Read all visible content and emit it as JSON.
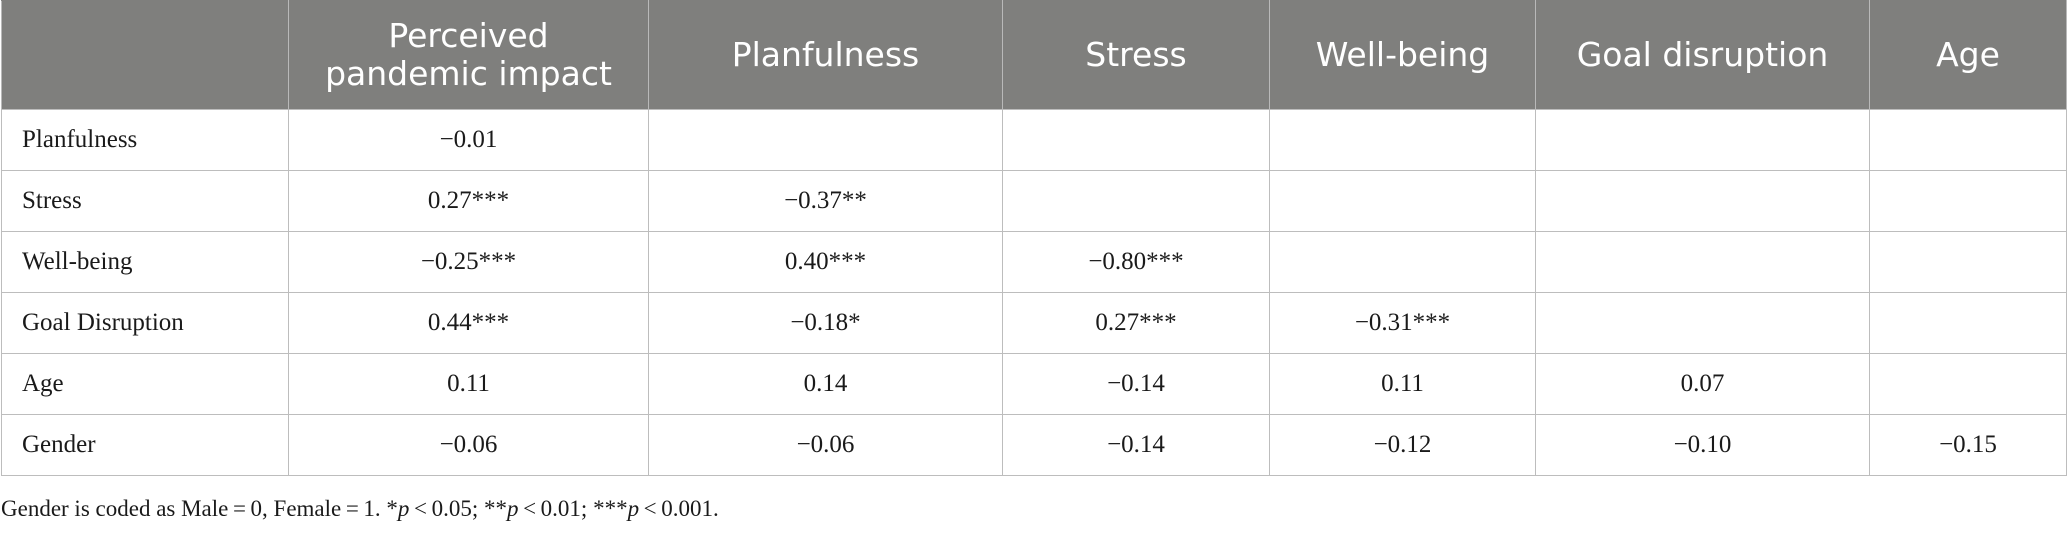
{
  "table": {
    "headers": [
      "",
      "Perceived pandemic impact",
      "Planfulness",
      "Stress",
      "Well-being",
      "Goal disruption",
      "Age"
    ],
    "rows": [
      {
        "label": "Planfulness",
        "cells": [
          "−0.01",
          "",
          "",
          "",
          "",
          ""
        ]
      },
      {
        "label": "Stress",
        "cells": [
          "0.27***",
          "−0.37**",
          "",
          "",
          "",
          ""
        ]
      },
      {
        "label": "Well-being",
        "cells": [
          "−0.25***",
          "0.40***",
          "−0.80***",
          "",
          "",
          ""
        ]
      },
      {
        "label": "Goal Disruption",
        "cells": [
          "0.44***",
          "−0.18*",
          "0.27***",
          "−0.31***",
          "",
          ""
        ]
      },
      {
        "label": "Age",
        "cells": [
          "0.11",
          "0.14",
          "−0.14",
          "0.11",
          "0.07",
          ""
        ]
      },
      {
        "label": "Gender",
        "cells": [
          "−0.06",
          "−0.06",
          "−0.14",
          "−0.12",
          "−0.10",
          "−0.15"
        ]
      }
    ]
  },
  "footnote": {
    "text1": "Gender is coded as Male = 0, Female = 1. *",
    "p1": "p",
    "text2": " < 0.05; **",
    "p2": "p",
    "text3": " < 0.01; ***",
    "p3": "p",
    "text4": " < 0.001."
  }
}
